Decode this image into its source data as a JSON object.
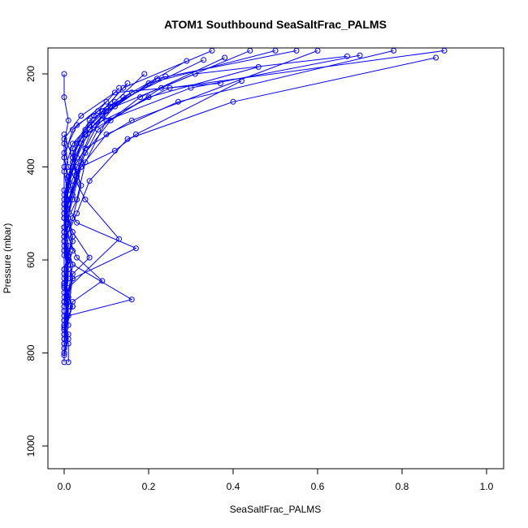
{
  "chart_data": {
    "type": "line",
    "title": "ATOM1 Southbound SeaSaltFrac_PALMS",
    "xlabel": "SeaSaltFrac_PALMS",
    "ylabel": "Pressure (mbar)",
    "xlim": [
      0.0,
      1.0
    ],
    "ylim": [
      1045,
      150
    ],
    "y_reversed": true,
    "xticks": [
      0.0,
      0.2,
      0.4,
      0.6,
      0.8,
      1.0
    ],
    "xtick_labels": [
      "0.0",
      "0.2",
      "0.4",
      "0.6",
      "0.8",
      "1.0"
    ],
    "yticks": [
      200,
      400,
      600,
      800,
      1000
    ],
    "ytick_labels": [
      "200",
      "400",
      "600",
      "800",
      "1000"
    ],
    "marker": "open-circle",
    "series_color": "#0000ff",
    "grid": false,
    "legend": "none",
    "series": [
      {
        "x": [
          0.0,
          0.0,
          0.01,
          0.0,
          0.02,
          0.0,
          0.01,
          0.0,
          0.0,
          0.0,
          0.0,
          0.0,
          0.01,
          0.0,
          0.0
        ],
        "y": [
          820,
          800,
          760,
          740,
          700,
          650,
          600,
          560,
          500,
          450,
          400,
          350,
          300,
          250,
          200
        ]
      },
      {
        "x": [
          0.0,
          0.01,
          0.0,
          0.0,
          0.02,
          0.01,
          0.0,
          0.03,
          0.05,
          0.1,
          0.3,
          0.7
        ],
        "y": [
          805,
          770,
          730,
          690,
          640,
          590,
          530,
          470,
          390,
          300,
          230,
          160
        ]
      },
      {
        "x": [
          0.0,
          0.0,
          0.01,
          0.0,
          0.01,
          0.0,
          0.02,
          0.04,
          0.02,
          0.0
        ],
        "y": [
          790,
          750,
          710,
          670,
          620,
          570,
          510,
          440,
          380,
          330
        ]
      },
      {
        "x": [
          0.01,
          0.01,
          0.0,
          0.02,
          0.0,
          0.01,
          0.0,
          0.03,
          0.06,
          0.15,
          0.4,
          0.88
        ],
        "y": [
          820,
          780,
          745,
          700,
          655,
          610,
          560,
          500,
          430,
          340,
          260,
          165
        ]
      },
      {
        "x": [
          0.0,
          0.02,
          0.17,
          0.03,
          0.0,
          0.01,
          0.0,
          0.02,
          0.1
        ],
        "y": [
          760,
          640,
          575,
          520,
          470,
          420,
          380,
          320,
          260
        ]
      },
      {
        "x": [
          0.0,
          0.01,
          0.16,
          0.02,
          0.0,
          0.0,
          0.02,
          0.05,
          0.2,
          0.46
        ],
        "y": [
          780,
          720,
          685,
          610,
          550,
          480,
          400,
          330,
          250,
          185
        ]
      },
      {
        "x": [
          0.0,
          0.0,
          0.01,
          0.13,
          0.05,
          0.01,
          0.0,
          0.04,
          0.12,
          0.37
        ],
        "y": [
          740,
          700,
          660,
          555,
          470,
          400,
          340,
          290,
          240,
          220
        ]
      },
      {
        "x": [
          0.0,
          0.02,
          0.09,
          0.03,
          0.0,
          0.01,
          0.0,
          0.03,
          0.08,
          0.33
        ],
        "y": [
          770,
          690,
          645,
          595,
          530,
          450,
          370,
          310,
          280,
          170
        ]
      },
      {
        "x": [
          0.0,
          0.01,
          0.02,
          0.06,
          0.02,
          0.0,
          0.01,
          0.05,
          0.16,
          0.6
        ],
        "y": [
          730,
          680,
          630,
          595,
          540,
          480,
          420,
          360,
          300,
          150
        ]
      },
      {
        "x": [
          0.0,
          0.0,
          0.01,
          0.0,
          0.02,
          0.04,
          0.12,
          0.17,
          0.42
        ],
        "y": [
          710,
          660,
          600,
          540,
          470,
          400,
          365,
          330,
          215
        ]
      },
      {
        "x": [
          0.0,
          0.01,
          0.0,
          0.0,
          0.01,
          0.03,
          0.06,
          0.14,
          0.29
        ],
        "y": [
          690,
          620,
          560,
          500,
          440,
          380,
          320,
          250,
          172
        ]
      },
      {
        "x": [
          0.0,
          0.0,
          0.01,
          0.0,
          0.01,
          0.02,
          0.05,
          0.09,
          0.2,
          0.5
        ],
        "y": [
          750,
          690,
          630,
          580,
          510,
          440,
          360,
          290,
          220,
          150
        ]
      },
      {
        "x": [
          0.0,
          0.01,
          0.0,
          0.02,
          0.0,
          0.01,
          0.04,
          0.12,
          0.31,
          0.67
        ],
        "y": [
          770,
          700,
          640,
          580,
          510,
          430,
          350,
          270,
          200,
          162
        ]
      },
      {
        "x": [
          0.0,
          0.0,
          0.01,
          0.0,
          0.02,
          0.0,
          0.03,
          0.07,
          0.25,
          0.9
        ],
        "y": [
          800,
          740,
          680,
          620,
          550,
          480,
          400,
          310,
          230,
          150
        ]
      },
      {
        "x": [
          0.0,
          0.01,
          0.0,
          0.0,
          0.01,
          0.0,
          0.02,
          0.05,
          0.11,
          0.24
        ],
        "y": [
          760,
          700,
          650,
          590,
          520,
          460,
          390,
          330,
          270,
          205
        ]
      },
      {
        "x": [
          0.0,
          0.0,
          0.0,
          0.01,
          0.0,
          0.02,
          0.04,
          0.08,
          0.18,
          0.38
        ],
        "y": [
          780,
          720,
          660,
          600,
          530,
          460,
          390,
          320,
          250,
          165
        ]
      },
      {
        "x": [
          0.0,
          0.01,
          0.0,
          0.01,
          0.0,
          0.03,
          0.02,
          0.06,
          0.14,
          0.35
        ],
        "y": [
          750,
          690,
          630,
          570,
          500,
          430,
          370,
          310,
          230,
          150
        ]
      },
      {
        "x": [
          0.0,
          0.0,
          0.01,
          0.0,
          0.01,
          0.0,
          0.02,
          0.09,
          0.15
        ],
        "y": [
          710,
          650,
          590,
          530,
          470,
          410,
          350,
          280,
          220
        ]
      },
      {
        "x": [
          0.0,
          0.01,
          0.0,
          0.0,
          0.02,
          0.0,
          0.01,
          0.03,
          0.1,
          0.22,
          0.55
        ],
        "y": [
          790,
          740,
          680,
          620,
          560,
          490,
          420,
          350,
          280,
          210,
          150
        ]
      },
      {
        "x": [
          0.0,
          0.0,
          0.01,
          0.0,
          0.0,
          0.02,
          0.03,
          0.07,
          0.13
        ],
        "y": [
          720,
          660,
          600,
          540,
          480,
          410,
          350,
          290,
          230
        ]
      },
      {
        "x": [
          0.0,
          0.01,
          0.0,
          0.01,
          0.0,
          0.01,
          0.04,
          0.1,
          0.27,
          0.78
        ],
        "y": [
          770,
          710,
          650,
          590,
          530,
          470,
          400,
          330,
          260,
          150
        ]
      },
      {
        "x": [
          0.0,
          0.0,
          0.0,
          0.01,
          0.0,
          0.01,
          0.02,
          0.05,
          0.12,
          0.19
        ],
        "y": [
          740,
          690,
          630,
          570,
          510,
          440,
          380,
          320,
          260,
          200
        ]
      },
      {
        "x": [
          0.0,
          0.01,
          0.02,
          0.0,
          0.01,
          0.03,
          0.02,
          0.06,
          0.16
        ],
        "y": [
          730,
          670,
          610,
          550,
          480,
          420,
          360,
          300,
          240
        ]
      },
      {
        "x": [
          0.0,
          0.0,
          0.01,
          0.0,
          0.0,
          0.02,
          0.05,
          0.11,
          0.23,
          0.44
        ],
        "y": [
          760,
          700,
          640,
          580,
          510,
          440,
          370,
          300,
          230,
          150
        ]
      }
    ]
  }
}
